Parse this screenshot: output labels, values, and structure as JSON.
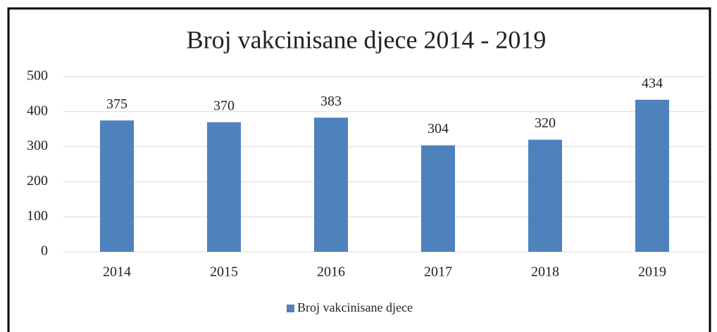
{
  "chart_data": {
    "type": "bar",
    "title": "Broj vakcinisane djece 2014 - 2019",
    "categories": [
      "2014",
      "2015",
      "2016",
      "2017",
      "2018",
      "2019"
    ],
    "series": [
      {
        "name": "Broj vakcinisane djece",
        "color": "#4f81bd",
        "values": [
          375,
          370,
          383,
          304,
          320,
          434
        ]
      }
    ],
    "ylim": [
      0,
      500
    ],
    "yticks": [
      0,
      100,
      200,
      300,
      400,
      500
    ],
    "grid": true,
    "legend": "bottom"
  }
}
